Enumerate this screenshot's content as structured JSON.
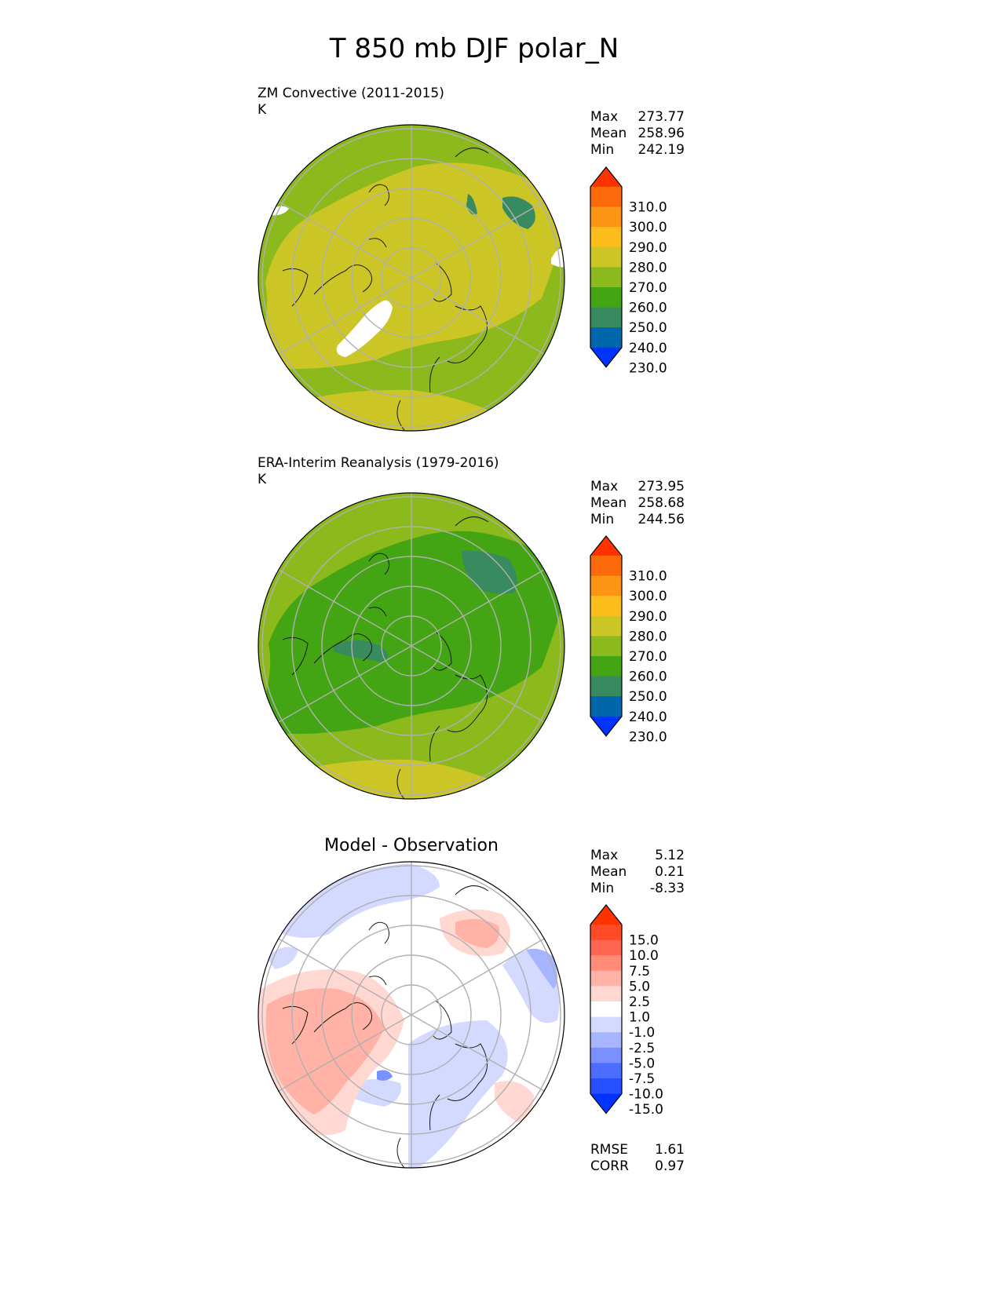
{
  "title": "T 850 mb DJF polar_N",
  "colors": {
    "ref": [
      "#0033ff",
      "#0066aa",
      "#378b5e",
      "#44a514",
      "#8cb91c",
      "#ccc526",
      "#fcbc1c",
      "#fd9514",
      "#fd6a0c",
      "#ff3300"
    ],
    "diff": [
      "#0033ff",
      "#264fff",
      "#4c6cff",
      "#7a90ff",
      "#a7b4ff",
      "#d4daff",
      "#ffffff",
      "#ffd8d2",
      "#ffb2a5",
      "#ff8b78",
      "#ff6550",
      "#ff4a26",
      "#ff3300"
    ]
  },
  "panels": [
    {
      "id": "test",
      "label_line1": "ZM Convective (2011-2015)",
      "label_line2": "K",
      "stats": {
        "max_label": "Max",
        "max": "273.77",
        "mean_label": "Mean",
        "mean": "258.96",
        "min_label": "Min",
        "min": "242.19"
      }
    },
    {
      "id": "ref",
      "label_line1": "ERA-Interim Reanalysis (1979-2016)",
      "label_line2": "K",
      "stats": {
        "max_label": "Max",
        "max": "273.95",
        "mean_label": "Mean",
        "mean": "258.68",
        "min_label": "Min",
        "min": "244.56"
      }
    },
    {
      "id": "diff",
      "title": "Model - Observation",
      "stats": {
        "max_label": "Max",
        "max": "5.12",
        "mean_label": "Mean",
        "mean": "0.21",
        "min_label": "Min",
        "min": "-8.33"
      },
      "metrics": {
        "rmse_label": "RMSE",
        "rmse": "1.61",
        "corr_label": "CORR",
        "corr": "0.97"
      }
    }
  ],
  "colorbars": {
    "ref_ticks": [
      "310.0",
      "300.0",
      "290.0",
      "280.0",
      "270.0",
      "260.0",
      "250.0",
      "240.0",
      "230.0"
    ],
    "diff_ticks": [
      "15.0",
      "10.0",
      "7.5",
      "5.0",
      "2.5",
      "1.0",
      "-1.0",
      "-2.5",
      "-5.0",
      "-7.5",
      "-10.0",
      "-15.0"
    ]
  },
  "chart_data": [
    {
      "type": "heatmap",
      "title": "ZM Convective (2011-2015)",
      "units": "K",
      "projection": "north polar stereographic",
      "levels": [
        230,
        240,
        250,
        260,
        270,
        280,
        290,
        300,
        310
      ],
      "max": 273.77,
      "mean": 258.96,
      "min": 242.19
    },
    {
      "type": "heatmap",
      "title": "ERA-Interim Reanalysis (1979-2016)",
      "units": "K",
      "projection": "north polar stereographic",
      "levels": [
        230,
        240,
        250,
        260,
        270,
        280,
        290,
        300,
        310
      ],
      "max": 273.95,
      "mean": 258.68,
      "min": 244.56
    },
    {
      "type": "heatmap",
      "title": "Model - Observation",
      "projection": "north polar stereographic",
      "levels": [
        -15,
        -10,
        -7.5,
        -5,
        -2.5,
        -1,
        1,
        2.5,
        5,
        7.5,
        10,
        15
      ],
      "max": 5.12,
      "mean": 0.21,
      "min": -8.33,
      "rmse": 1.61,
      "corr": 0.97
    }
  ]
}
